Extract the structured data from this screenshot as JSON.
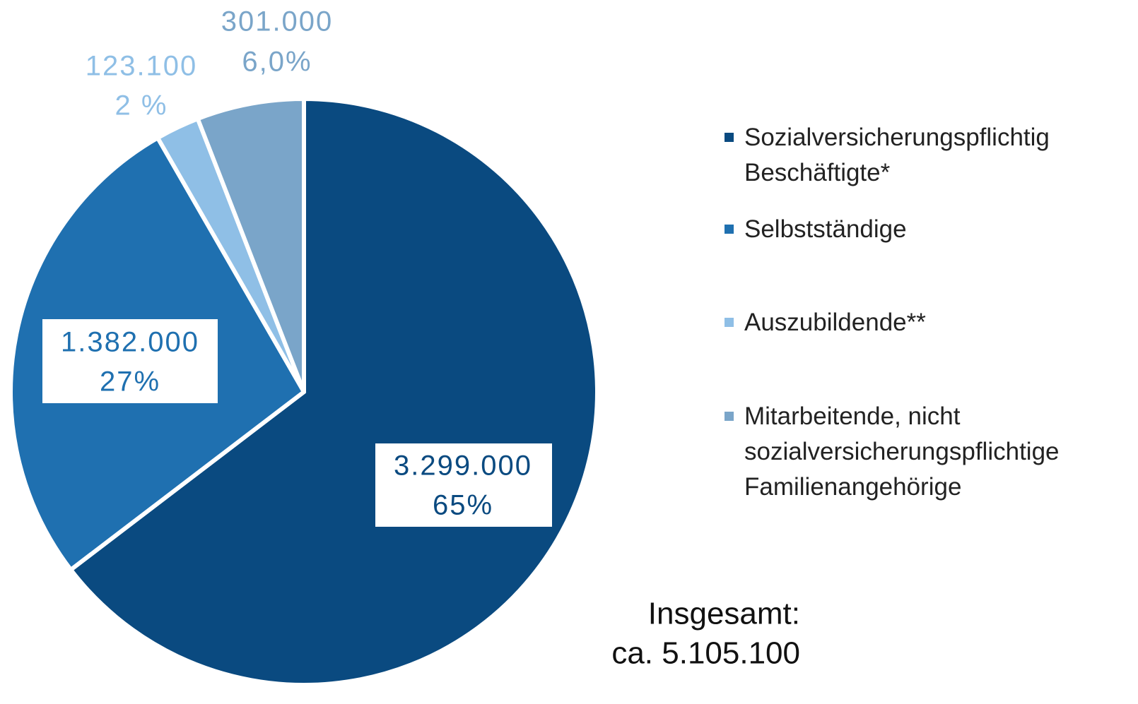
{
  "chart_data": {
    "type": "pie",
    "categories": [
      "Sozialversicherungspflichtig Beschäftigte*",
      "Selbstständige",
      "Auszubildende**",
      "Mitarbeitende, nicht sozialversicherungspflichtige Familienangehörige"
    ],
    "values": [
      3299000,
      1382000,
      123100,
      301000
    ],
    "value_labels": [
      "3.299.000",
      "1.382.000",
      "123.100",
      "301.000"
    ],
    "percentages": [
      65,
      27,
      2,
      6.0
    ],
    "percentage_labels": [
      "65%",
      "27%",
      "2 %",
      "6,0%"
    ],
    "colors": [
      "#0a4a80",
      "#1f70b0",
      "#8fbfe6",
      "#7aa5c9"
    ],
    "legend": "right",
    "annotation": [
      "Insgesamt:",
      "ca. 5.105.100"
    ]
  }
}
